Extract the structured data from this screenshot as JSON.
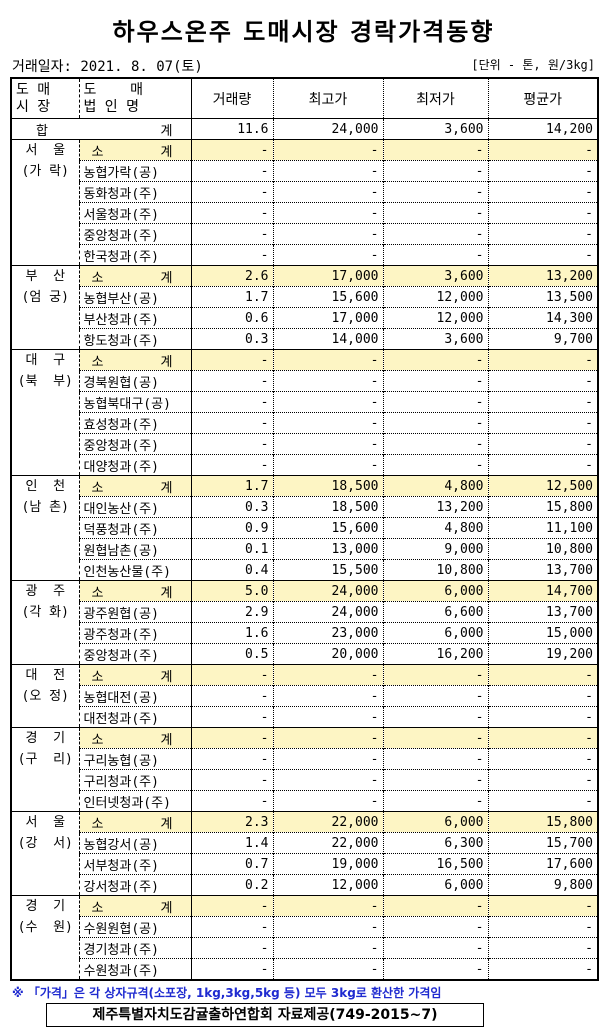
{
  "title": "하우스온주 도매시장 경락가격동향",
  "date": "거래일자: 2021. 8. 07(토)",
  "unit": "[단위 - 톤, 원/3kg]",
  "headers": {
    "market": [
      "도  매",
      "시  장"
    ],
    "corp": [
      "도    매",
      "법 인 명"
    ],
    "volume": "거래량",
    "max": "최고가",
    "min": "최저가",
    "avg": "평균가"
  },
  "total": {
    "label_left": "합",
    "label_right": "계",
    "volume": "11.6",
    "max": "24,000",
    "min": "3,600",
    "avg": "14,200"
  },
  "subtotal_label": [
    "소",
    "계"
  ],
  "colors": {
    "subtotal_bg": "#fdf5c4",
    "note": "#1f2bd0"
  },
  "markets": [
    {
      "name": [
        "서  울",
        "(가 락)"
      ],
      "rows": [
        [
          "소계",
          "-",
          "-",
          "-",
          "-"
        ],
        [
          "농협가락(공)",
          "-",
          "-",
          "-",
          "-"
        ],
        [
          "동화청과(주)",
          "-",
          "-",
          "-",
          "-"
        ],
        [
          "서울청과(주)",
          "-",
          "-",
          "-",
          "-"
        ],
        [
          "중앙청과(주)",
          "-",
          "-",
          "-",
          "-"
        ],
        [
          "한국청과(주)",
          "-",
          "-",
          "-",
          "-"
        ]
      ]
    },
    {
      "name": [
        "부  산",
        "(엄 궁)"
      ],
      "rows": [
        [
          "소계",
          "2.6",
          "17,000",
          "3,600",
          "13,200"
        ],
        [
          "농협부산(공)",
          "1.7",
          "15,600",
          "12,000",
          "13,500"
        ],
        [
          "부산청과(주)",
          "0.6",
          "17,000",
          "12,000",
          "14,300"
        ],
        [
          "항도청과(주)",
          "0.3",
          "14,000",
          "3,600",
          "9,700"
        ]
      ]
    },
    {
      "name": [
        "대  구",
        "(북  부)"
      ],
      "rows": [
        [
          "소계",
          "-",
          "-",
          "-",
          "-"
        ],
        [
          "경북원협(공)",
          "-",
          "-",
          "-",
          "-"
        ],
        [
          "농협북대구(공)",
          "-",
          "-",
          "-",
          "-"
        ],
        [
          "효성청과(주)",
          "-",
          "-",
          "-",
          "-"
        ],
        [
          "중앙청과(주)",
          "-",
          "-",
          "-",
          "-"
        ],
        [
          "대양청과(주)",
          "-",
          "-",
          "-",
          "-"
        ]
      ]
    },
    {
      "name": [
        "인  천",
        "(남 촌)"
      ],
      "rows": [
        [
          "소계",
          "1.7",
          "18,500",
          "4,800",
          "12,500"
        ],
        [
          "대인농산(주)",
          "0.3",
          "18,500",
          "13,200",
          "15,800"
        ],
        [
          "덕풍청과(주)",
          "0.9",
          "15,600",
          "4,800",
          "11,100"
        ],
        [
          "원협남촌(공)",
          "0.1",
          "13,000",
          "9,000",
          "10,800"
        ],
        [
          "인천농산물(주)",
          "0.4",
          "15,500",
          "10,800",
          "13,700"
        ]
      ]
    },
    {
      "name": [
        "광  주",
        "(각 화)"
      ],
      "rows": [
        [
          "소계",
          "5.0",
          "24,000",
          "6,000",
          "14,700"
        ],
        [
          "광주원협(공)",
          "2.9",
          "24,000",
          "6,600",
          "13,700"
        ],
        [
          "광주청과(주)",
          "1.6",
          "23,000",
          "6,000",
          "15,000"
        ],
        [
          "중앙청과(주)",
          "0.5",
          "20,000",
          "16,200",
          "19,200"
        ]
      ]
    },
    {
      "name": [
        "대  전",
        "(오 정)"
      ],
      "rows": [
        [
          "소계",
          "-",
          "-",
          "-",
          "-"
        ],
        [
          "농협대전(공)",
          "-",
          "-",
          "-",
          "-"
        ],
        [
          "대전청과(주)",
          "-",
          "-",
          "-",
          "-"
        ]
      ]
    },
    {
      "name": [
        "경  기",
        "(구  리)"
      ],
      "rows": [
        [
          "소계",
          "-",
          "-",
          "-",
          "-"
        ],
        [
          "구리농협(공)",
          "-",
          "-",
          "-",
          "-"
        ],
        [
          "구리청과(주)",
          "-",
          "-",
          "-",
          "-"
        ],
        [
          "인터넷청과(주)",
          "-",
          "-",
          "-",
          "-"
        ]
      ]
    },
    {
      "name": [
        "서  울",
        "(강  서)"
      ],
      "rows": [
        [
          "소계",
          "2.3",
          "22,000",
          "6,000",
          "15,800"
        ],
        [
          "농협강서(공)",
          "1.4",
          "22,000",
          "6,300",
          "15,700"
        ],
        [
          "서부청과(주)",
          "0.7",
          "19,000",
          "16,500",
          "17,600"
        ],
        [
          "강서청과(주)",
          "0.2",
          "12,000",
          "6,000",
          "9,800"
        ]
      ]
    },
    {
      "name": [
        "경  기",
        "(수  원)"
      ],
      "rows": [
        [
          "소계",
          "-",
          "-",
          "-",
          "-"
        ],
        [
          "수원원협(공)",
          "-",
          "-",
          "-",
          "-"
        ],
        [
          "경기청과(주)",
          "-",
          "-",
          "-",
          "-"
        ],
        [
          "수원청과(주)",
          "-",
          "-",
          "-",
          "-"
        ]
      ]
    }
  ],
  "note": "※ 「가격」은 각 상자규격(소포장, 1kg,3kg,5kg 등) 모두 3kg로 환산한 가격임",
  "source": "제주특별자치도감귤출하연합회 자료제공(749-2015~7)"
}
